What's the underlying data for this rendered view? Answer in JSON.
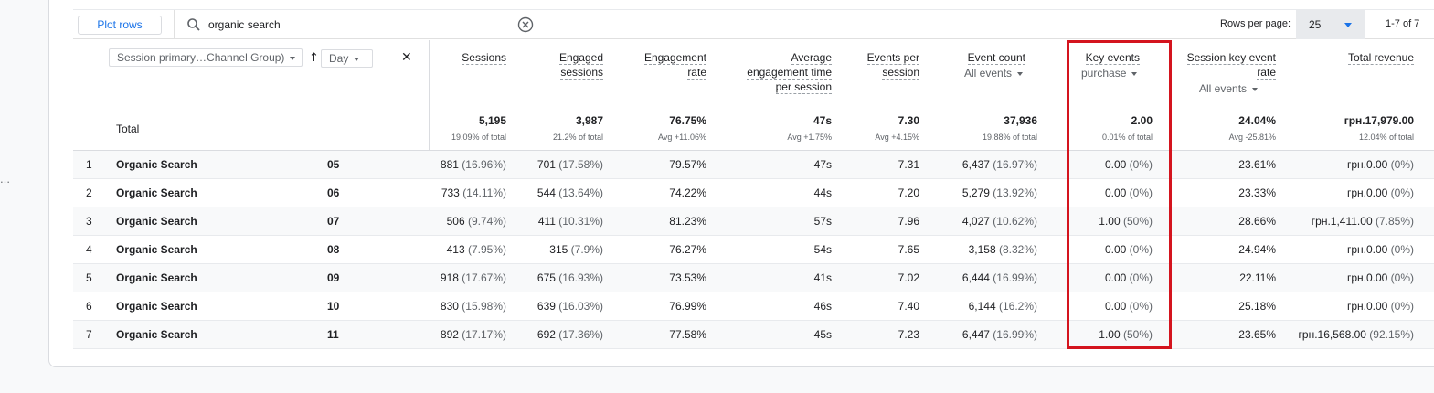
{
  "left_rail": {
    "marks": [
      "…"
    ]
  },
  "toolbar": {
    "plot_rows_label": "Plot rows",
    "search_value": "organic search",
    "rows_per_page_label": "Rows per page:",
    "rows_per_page_value": "25",
    "page_info": "1-7 of 7"
  },
  "dimensions": {
    "primary": "Session primary…Channel Group)",
    "secondary": "Day"
  },
  "columns": {
    "sessions": "Sessions",
    "engaged_1": "Engaged",
    "engaged_2": "sessions",
    "engagement_1": "Engagement",
    "engagement_2": "rate",
    "avg_1": "Average",
    "avg_2": "engagement time",
    "avg_3": "per session",
    "eps_1": "Events per",
    "eps_2": "session",
    "event_count": "Event count",
    "event_count_filter": "All events",
    "key_events": "Key events",
    "key_events_filter": "purchase",
    "skr_1": "Session key event",
    "skr_2": "rate",
    "skr_filter": "All events",
    "revenue": "Total revenue"
  },
  "totals": {
    "label": "Total",
    "sessions": "5,195",
    "sessions_sub": "19.09% of total",
    "engaged": "3,987",
    "engaged_sub": "21.2% of total",
    "engagement_rate": "76.75%",
    "engagement_rate_sub": "Avg +11.06%",
    "avg_time": "47s",
    "avg_time_sub": "Avg +1.75%",
    "eps": "7.30",
    "eps_sub": "Avg +4.15%",
    "event_count": "37,936",
    "event_count_sub": "19.88% of total",
    "key_events": "2.00",
    "key_events_sub": "0.01% of total",
    "skr": "24.04%",
    "skr_sub": "Avg -25.81%",
    "revenue": "грн.17,979.00",
    "revenue_sub": "12.04% of total"
  },
  "rows": [
    {
      "n": "1",
      "channel": "Organic Search",
      "day": "05",
      "sessions": "881",
      "sessions_pct": "(16.96%)",
      "engaged": "701",
      "engaged_pct": "(17.58%)",
      "rate": "79.57%",
      "time": "47s",
      "eps": "7.31",
      "events": "6,437",
      "events_pct": "(16.97%)",
      "key": "0.00",
      "key_pct": "(0%)",
      "skr": "23.61%",
      "revenue": "грн.0.00",
      "revenue_pct": "(0%)"
    },
    {
      "n": "2",
      "channel": "Organic Search",
      "day": "06",
      "sessions": "733",
      "sessions_pct": "(14.11%)",
      "engaged": "544",
      "engaged_pct": "(13.64%)",
      "rate": "74.22%",
      "time": "44s",
      "eps": "7.20",
      "events": "5,279",
      "events_pct": "(13.92%)",
      "key": "0.00",
      "key_pct": "(0%)",
      "skr": "23.33%",
      "revenue": "грн.0.00",
      "revenue_pct": "(0%)"
    },
    {
      "n": "3",
      "channel": "Organic Search",
      "day": "07",
      "sessions": "506",
      "sessions_pct": "(9.74%)",
      "engaged": "411",
      "engaged_pct": "(10.31%)",
      "rate": "81.23%",
      "time": "57s",
      "eps": "7.96",
      "events": "4,027",
      "events_pct": "(10.62%)",
      "key": "1.00",
      "key_pct": "(50%)",
      "skr": "28.66%",
      "revenue": "грн.1,411.00",
      "revenue_pct": "(7.85%)"
    },
    {
      "n": "4",
      "channel": "Organic Search",
      "day": "08",
      "sessions": "413",
      "sessions_pct": "(7.95%)",
      "engaged": "315",
      "engaged_pct": "(7.9%)",
      "rate": "76.27%",
      "time": "54s",
      "eps": "7.65",
      "events": "3,158",
      "events_pct": "(8.32%)",
      "key": "0.00",
      "key_pct": "(0%)",
      "skr": "24.94%",
      "revenue": "грн.0.00",
      "revenue_pct": "(0%)"
    },
    {
      "n": "5",
      "channel": "Organic Search",
      "day": "09",
      "sessions": "918",
      "sessions_pct": "(17.67%)",
      "engaged": "675",
      "engaged_pct": "(16.93%)",
      "rate": "73.53%",
      "time": "41s",
      "eps": "7.02",
      "events": "6,444",
      "events_pct": "(16.99%)",
      "key": "0.00",
      "key_pct": "(0%)",
      "skr": "22.11%",
      "revenue": "грн.0.00",
      "revenue_pct": "(0%)"
    },
    {
      "n": "6",
      "channel": "Organic Search",
      "day": "10",
      "sessions": "830",
      "sessions_pct": "(15.98%)",
      "engaged": "639",
      "engaged_pct": "(16.03%)",
      "rate": "76.99%",
      "time": "46s",
      "eps": "7.40",
      "events": "6,144",
      "events_pct": "(16.2%)",
      "key": "0.00",
      "key_pct": "(0%)",
      "skr": "25.18%",
      "revenue": "грн.0.00",
      "revenue_pct": "(0%)"
    },
    {
      "n": "7",
      "channel": "Organic Search",
      "day": "11",
      "sessions": "892",
      "sessions_pct": "(17.17%)",
      "engaged": "692",
      "engaged_pct": "(17.36%)",
      "rate": "77.58%",
      "time": "45s",
      "eps": "7.23",
      "events": "6,447",
      "events_pct": "(16.99%)",
      "key": "1.00",
      "key_pct": "(50%)",
      "skr": "23.65%",
      "revenue": "грн.16,568.00",
      "revenue_pct": "(92.15%)"
    }
  ],
  "colors": {
    "accent": "#1a73e8",
    "highlight": "#d4141e"
  }
}
